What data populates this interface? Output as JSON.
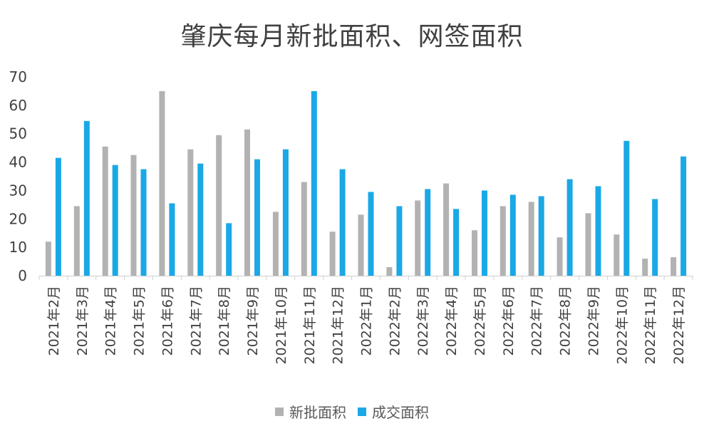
{
  "chart_data": {
    "type": "bar",
    "title": "肇庆每月新批面积、网签面积",
    "categories": [
      "2021年2月",
      "2021年3月",
      "2021年4月",
      "2021年5月",
      "2021年6月",
      "2021年7月",
      "2021年8月",
      "2021年9月",
      "2021年10月",
      "2021年11月",
      "2021年12月",
      "2022年1月",
      "2022年2月",
      "2022年3月",
      "2022年4月",
      "2022年5月",
      "2022年6月",
      "2022年7月",
      "2022年8月",
      "2022年9月",
      "2022年10月",
      "2022年11月",
      "2022年12月"
    ],
    "series": [
      {
        "name": "新批面积",
        "color": "#b2b2b2",
        "values": [
          12,
          24.5,
          45.5,
          42.5,
          65,
          44.5,
          49.5,
          51.5,
          22.5,
          33,
          15.5,
          21.5,
          3,
          26.5,
          32.5,
          16,
          24.5,
          26,
          13.5,
          22,
          14.5,
          6,
          6.5
        ]
      },
      {
        "name": "成交面积",
        "color": "#1aa8e6",
        "values": [
          41.5,
          54.5,
          39,
          37.5,
          25.5,
          39.5,
          18.5,
          41,
          44.5,
          65,
          37.5,
          29.5,
          24.5,
          30.5,
          23.5,
          30,
          28.5,
          28,
          34,
          31.5,
          47.5,
          27,
          42
        ]
      }
    ],
    "ylim": [
      0,
      70
    ],
    "yticks": [
      "0",
      "10",
      "20",
      "30",
      "40",
      "50",
      "60",
      "70"
    ],
    "xlabel": "",
    "ylabel": "",
    "legend": "bottom-center"
  }
}
